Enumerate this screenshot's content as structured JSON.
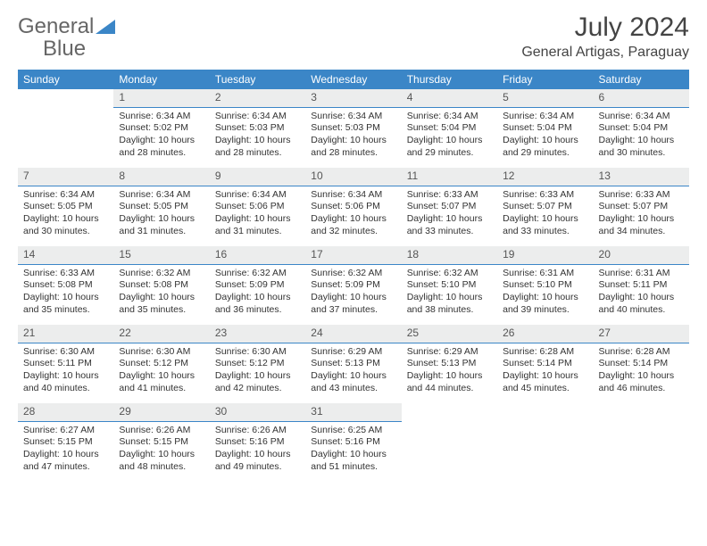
{
  "brand": {
    "word1": "General",
    "word2": "Blue"
  },
  "title": "July 2024",
  "location": "General Artigas, Paraguay",
  "colors": {
    "accent": "#3b86c7",
    "daynum_bg": "#eceded",
    "text": "#333333",
    "header_text": "#ffffff"
  },
  "weekdays": [
    "Sunday",
    "Monday",
    "Tuesday",
    "Wednesday",
    "Thursday",
    "Friday",
    "Saturday"
  ],
  "weeks": [
    [
      null,
      {
        "n": "1",
        "sr": "Sunrise: 6:34 AM",
        "ss": "Sunset: 5:02 PM",
        "d1": "Daylight: 10 hours",
        "d2": "and 28 minutes."
      },
      {
        "n": "2",
        "sr": "Sunrise: 6:34 AM",
        "ss": "Sunset: 5:03 PM",
        "d1": "Daylight: 10 hours",
        "d2": "and 28 minutes."
      },
      {
        "n": "3",
        "sr": "Sunrise: 6:34 AM",
        "ss": "Sunset: 5:03 PM",
        "d1": "Daylight: 10 hours",
        "d2": "and 28 minutes."
      },
      {
        "n": "4",
        "sr": "Sunrise: 6:34 AM",
        "ss": "Sunset: 5:04 PM",
        "d1": "Daylight: 10 hours",
        "d2": "and 29 minutes."
      },
      {
        "n": "5",
        "sr": "Sunrise: 6:34 AM",
        "ss": "Sunset: 5:04 PM",
        "d1": "Daylight: 10 hours",
        "d2": "and 29 minutes."
      },
      {
        "n": "6",
        "sr": "Sunrise: 6:34 AM",
        "ss": "Sunset: 5:04 PM",
        "d1": "Daylight: 10 hours",
        "d2": "and 30 minutes."
      }
    ],
    [
      {
        "n": "7",
        "sr": "Sunrise: 6:34 AM",
        "ss": "Sunset: 5:05 PM",
        "d1": "Daylight: 10 hours",
        "d2": "and 30 minutes."
      },
      {
        "n": "8",
        "sr": "Sunrise: 6:34 AM",
        "ss": "Sunset: 5:05 PM",
        "d1": "Daylight: 10 hours",
        "d2": "and 31 minutes."
      },
      {
        "n": "9",
        "sr": "Sunrise: 6:34 AM",
        "ss": "Sunset: 5:06 PM",
        "d1": "Daylight: 10 hours",
        "d2": "and 31 minutes."
      },
      {
        "n": "10",
        "sr": "Sunrise: 6:34 AM",
        "ss": "Sunset: 5:06 PM",
        "d1": "Daylight: 10 hours",
        "d2": "and 32 minutes."
      },
      {
        "n": "11",
        "sr": "Sunrise: 6:33 AM",
        "ss": "Sunset: 5:07 PM",
        "d1": "Daylight: 10 hours",
        "d2": "and 33 minutes."
      },
      {
        "n": "12",
        "sr": "Sunrise: 6:33 AM",
        "ss": "Sunset: 5:07 PM",
        "d1": "Daylight: 10 hours",
        "d2": "and 33 minutes."
      },
      {
        "n": "13",
        "sr": "Sunrise: 6:33 AM",
        "ss": "Sunset: 5:07 PM",
        "d1": "Daylight: 10 hours",
        "d2": "and 34 minutes."
      }
    ],
    [
      {
        "n": "14",
        "sr": "Sunrise: 6:33 AM",
        "ss": "Sunset: 5:08 PM",
        "d1": "Daylight: 10 hours",
        "d2": "and 35 minutes."
      },
      {
        "n": "15",
        "sr": "Sunrise: 6:32 AM",
        "ss": "Sunset: 5:08 PM",
        "d1": "Daylight: 10 hours",
        "d2": "and 35 minutes."
      },
      {
        "n": "16",
        "sr": "Sunrise: 6:32 AM",
        "ss": "Sunset: 5:09 PM",
        "d1": "Daylight: 10 hours",
        "d2": "and 36 minutes."
      },
      {
        "n": "17",
        "sr": "Sunrise: 6:32 AM",
        "ss": "Sunset: 5:09 PM",
        "d1": "Daylight: 10 hours",
        "d2": "and 37 minutes."
      },
      {
        "n": "18",
        "sr": "Sunrise: 6:32 AM",
        "ss": "Sunset: 5:10 PM",
        "d1": "Daylight: 10 hours",
        "d2": "and 38 minutes."
      },
      {
        "n": "19",
        "sr": "Sunrise: 6:31 AM",
        "ss": "Sunset: 5:10 PM",
        "d1": "Daylight: 10 hours",
        "d2": "and 39 minutes."
      },
      {
        "n": "20",
        "sr": "Sunrise: 6:31 AM",
        "ss": "Sunset: 5:11 PM",
        "d1": "Daylight: 10 hours",
        "d2": "and 40 minutes."
      }
    ],
    [
      {
        "n": "21",
        "sr": "Sunrise: 6:30 AM",
        "ss": "Sunset: 5:11 PM",
        "d1": "Daylight: 10 hours",
        "d2": "and 40 minutes."
      },
      {
        "n": "22",
        "sr": "Sunrise: 6:30 AM",
        "ss": "Sunset: 5:12 PM",
        "d1": "Daylight: 10 hours",
        "d2": "and 41 minutes."
      },
      {
        "n": "23",
        "sr": "Sunrise: 6:30 AM",
        "ss": "Sunset: 5:12 PM",
        "d1": "Daylight: 10 hours",
        "d2": "and 42 minutes."
      },
      {
        "n": "24",
        "sr": "Sunrise: 6:29 AM",
        "ss": "Sunset: 5:13 PM",
        "d1": "Daylight: 10 hours",
        "d2": "and 43 minutes."
      },
      {
        "n": "25",
        "sr": "Sunrise: 6:29 AM",
        "ss": "Sunset: 5:13 PM",
        "d1": "Daylight: 10 hours",
        "d2": "and 44 minutes."
      },
      {
        "n": "26",
        "sr": "Sunrise: 6:28 AM",
        "ss": "Sunset: 5:14 PM",
        "d1": "Daylight: 10 hours",
        "d2": "and 45 minutes."
      },
      {
        "n": "27",
        "sr": "Sunrise: 6:28 AM",
        "ss": "Sunset: 5:14 PM",
        "d1": "Daylight: 10 hours",
        "d2": "and 46 minutes."
      }
    ],
    [
      {
        "n": "28",
        "sr": "Sunrise: 6:27 AM",
        "ss": "Sunset: 5:15 PM",
        "d1": "Daylight: 10 hours",
        "d2": "and 47 minutes."
      },
      {
        "n": "29",
        "sr": "Sunrise: 6:26 AM",
        "ss": "Sunset: 5:15 PM",
        "d1": "Daylight: 10 hours",
        "d2": "and 48 minutes."
      },
      {
        "n": "30",
        "sr": "Sunrise: 6:26 AM",
        "ss": "Sunset: 5:16 PM",
        "d1": "Daylight: 10 hours",
        "d2": "and 49 minutes."
      },
      {
        "n": "31",
        "sr": "Sunrise: 6:25 AM",
        "ss": "Sunset: 5:16 PM",
        "d1": "Daylight: 10 hours",
        "d2": "and 51 minutes."
      },
      null,
      null,
      null
    ]
  ]
}
